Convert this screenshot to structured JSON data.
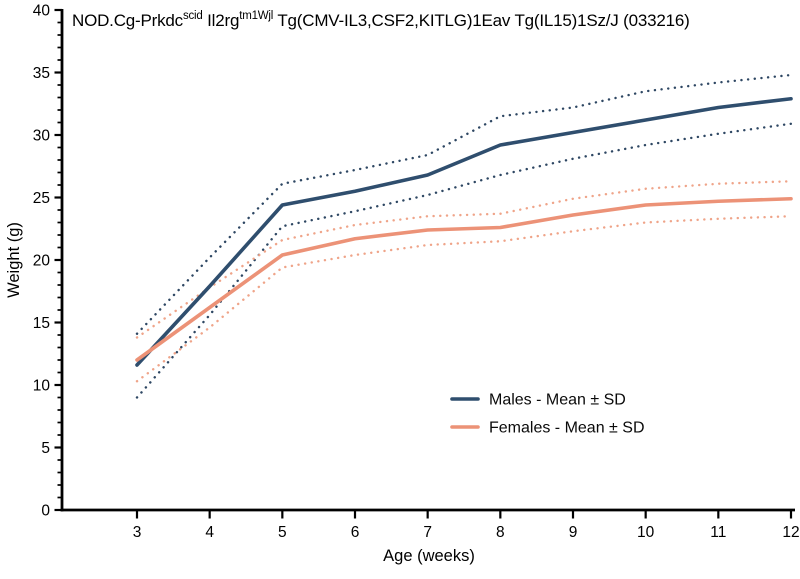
{
  "title": {
    "parts": [
      {
        "text": "NOD.Cg-Prkdc"
      },
      {
        "text": "scid",
        "sup": true
      },
      {
        "text": " Il2rg"
      },
      {
        "text": "tm1Wjl",
        "sup": true
      },
      {
        "text": " Tg(CMV-IL3,CSF2,KITLG)1Eav Tg(IL15)1Sz/J (033216)"
      }
    ]
  },
  "axes": {
    "x": {
      "label": "Age (weeks)",
      "ticks": [
        3,
        4,
        5,
        6,
        7,
        8,
        9,
        10,
        11,
        12
      ],
      "min": 3,
      "max": 12
    },
    "y": {
      "label": "Weight (g)",
      "ticks": [
        0,
        5,
        10,
        15,
        20,
        25,
        30,
        35,
        40
      ],
      "min": 0,
      "max": 40,
      "minor_step": 1
    }
  },
  "legend": [
    {
      "label": "Males - Mean ± SD",
      "color": "#2f4e6e"
    },
    {
      "label": "Females - Mean ± SD",
      "color": "#ec9277"
    }
  ],
  "chart_data": {
    "type": "line",
    "title": "NOD.Cg-Prkdc^scid Il2rg^tm1Wjl Tg(CMV-IL3,CSF2,KITLG)1Eav Tg(IL15)1Sz/J (033216)",
    "xlabel": "Age (weeks)",
    "ylabel": "Weight (g)",
    "xlim": [
      3,
      12
    ],
    "ylim": [
      0,
      40
    ],
    "grid": false,
    "legend_position": "inside lower right",
    "x": [
      3,
      4,
      5,
      6,
      7,
      8,
      9,
      10,
      11,
      12
    ],
    "series": [
      {
        "id": "males-mean",
        "name": "Males mean",
        "style": "solid",
        "color": "#2f4e6e",
        "values": [
          11.6,
          17.9,
          24.4,
          25.5,
          26.8,
          29.2,
          30.2,
          31.2,
          32.2,
          32.9
        ]
      },
      {
        "id": "males-plus-sd",
        "name": "Males mean + SD",
        "style": "dotted",
        "color": "#2e4763",
        "values": [
          14.1,
          20.2,
          26.1,
          27.2,
          28.4,
          31.5,
          32.2,
          33.5,
          34.2,
          34.8
        ]
      },
      {
        "id": "males-minus-sd",
        "name": "Males mean - SD",
        "style": "dotted",
        "color": "#2e4763",
        "values": [
          9.0,
          15.6,
          22.7,
          23.9,
          25.2,
          26.8,
          28.1,
          29.2,
          30.1,
          30.9
        ]
      },
      {
        "id": "females-mean",
        "name": "Females mean",
        "style": "solid",
        "color": "#ec9277",
        "values": [
          12.0,
          16.2,
          20.4,
          21.7,
          22.4,
          22.6,
          23.6,
          24.4,
          24.7,
          24.9
        ]
      },
      {
        "id": "females-plus-sd",
        "name": "Females mean + SD",
        "style": "dotted",
        "color": "#efa489",
        "values": [
          13.8,
          17.8,
          21.6,
          22.8,
          23.5,
          23.7,
          24.9,
          25.7,
          26.1,
          26.3
        ]
      },
      {
        "id": "females-minus-sd",
        "name": "Females mean - SD",
        "style": "dotted",
        "color": "#efa489",
        "values": [
          10.3,
          14.6,
          19.4,
          20.4,
          21.2,
          21.5,
          22.3,
          23.0,
          23.3,
          23.5
        ]
      }
    ]
  }
}
